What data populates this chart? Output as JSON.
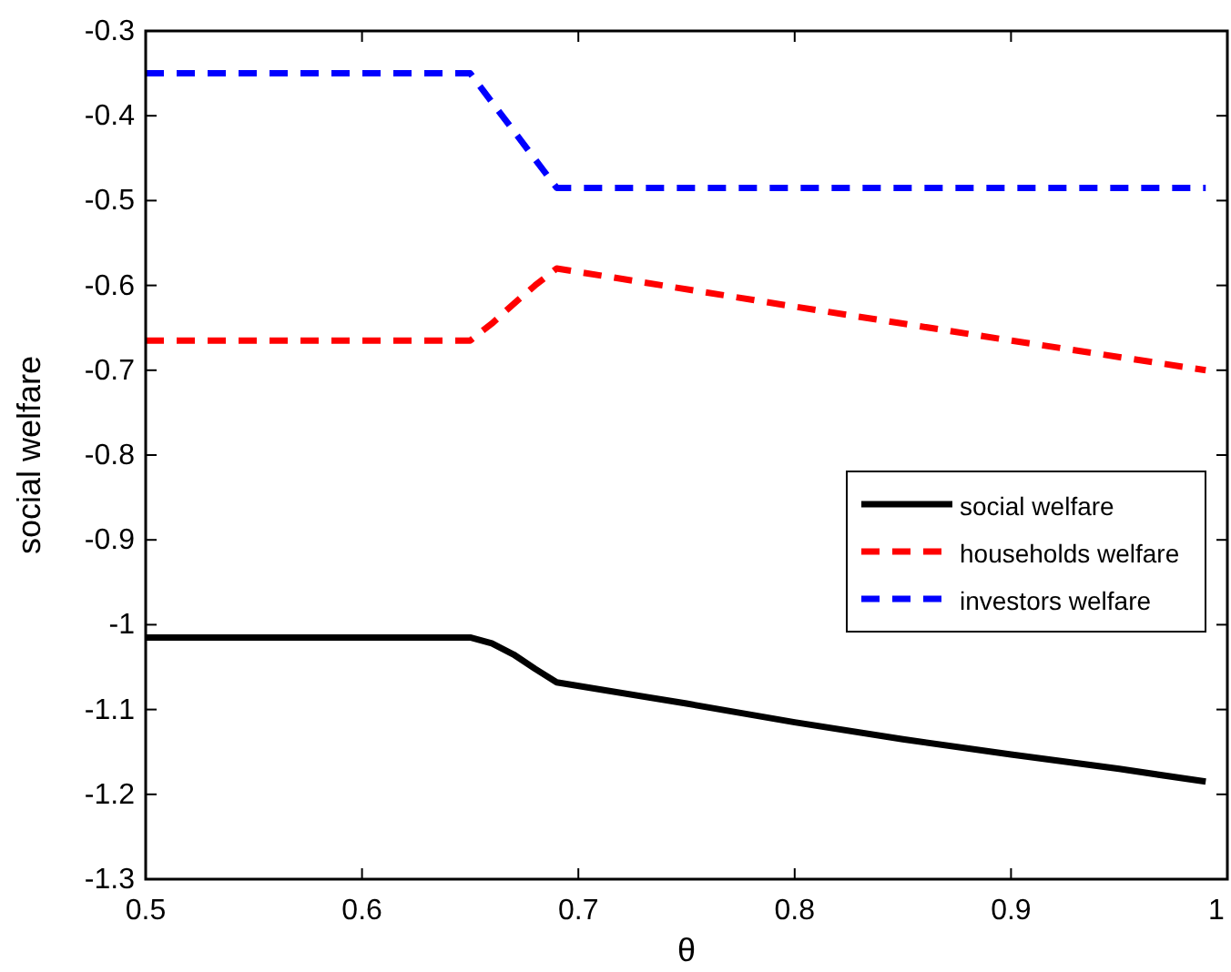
{
  "chart_data": {
    "type": "line",
    "xlabel": "θ",
    "ylabel": "social welfare",
    "xlim": [
      0.5,
      1
    ],
    "ylim": [
      -1.3,
      -0.3
    ],
    "xticks": [
      0.5,
      0.6,
      0.7,
      0.8,
      0.9,
      1
    ],
    "yticks": [
      -1.3,
      -1.2,
      -1.1,
      -1,
      -0.9,
      -0.8,
      -0.7,
      -0.6,
      -0.5,
      -0.4,
      -0.3
    ],
    "grid": false,
    "legend": "right",
    "series": [
      {
        "name": "social welfare",
        "color": "#000000",
        "line_style": "solid",
        "x": [
          0.5,
          0.6,
          0.65,
          0.66,
          0.67,
          0.68,
          0.69,
          0.75,
          0.8,
          0.85,
          0.9,
          0.95,
          0.99
        ],
        "values": [
          -1.015,
          -1.015,
          -1.015,
          -1.022,
          -1.035,
          -1.052,
          -1.068,
          -1.093,
          -1.115,
          -1.135,
          -1.153,
          -1.17,
          -1.185
        ]
      },
      {
        "name": "households welfare",
        "color": "#ff0000",
        "line_style": "dashed",
        "x": [
          0.5,
          0.6,
          0.65,
          0.66,
          0.67,
          0.68,
          0.69,
          0.8,
          0.9,
          0.99
        ],
        "values": [
          -0.665,
          -0.665,
          -0.665,
          -0.645,
          -0.622,
          -0.6,
          -0.58,
          -0.625,
          -0.665,
          -0.7
        ]
      },
      {
        "name": "investors welfare",
        "color": "#0000ff",
        "line_style": "dashed",
        "x": [
          0.5,
          0.65,
          0.69,
          0.8,
          0.9,
          0.99
        ],
        "values": [
          -0.35,
          -0.35,
          -0.485,
          -0.485,
          -0.485,
          -0.485
        ]
      }
    ]
  }
}
